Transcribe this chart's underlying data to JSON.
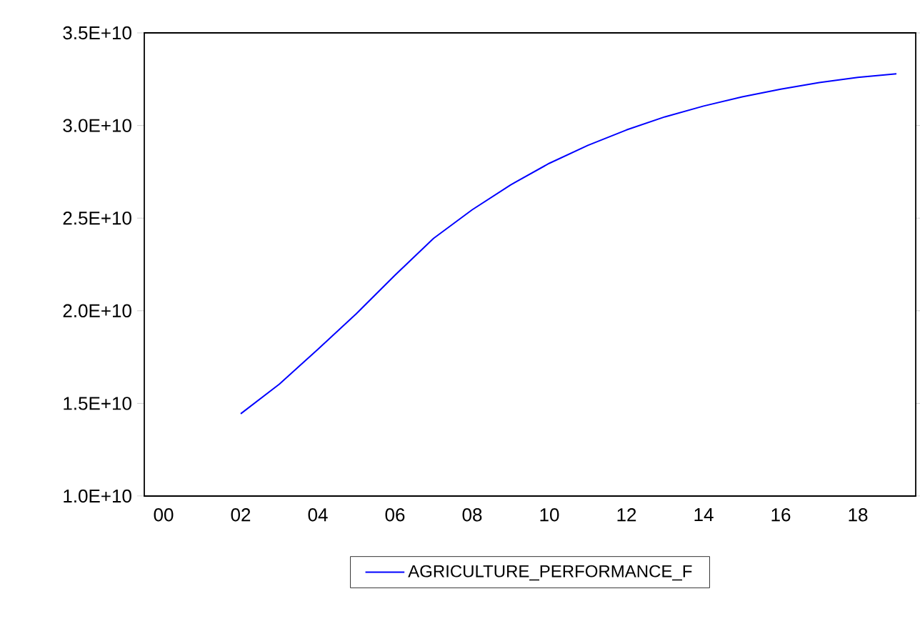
{
  "chart_data": {
    "type": "line",
    "categories": [
      "00",
      null,
      "02",
      null,
      "04",
      null,
      "06",
      null,
      "08",
      null,
      "10",
      null,
      "12",
      null,
      "14",
      null,
      "16",
      null,
      "18",
      null
    ],
    "series": [
      {
        "name": "AGRICULTURE_PERFORMANCE_F",
        "color": "#0000ff",
        "values": [
          null,
          null,
          14440000000,
          16040000000,
          17920000000,
          19850000000,
          21920000000,
          23910000000,
          25450000000,
          26800000000,
          27960000000,
          28930000000,
          29760000000,
          30470000000,
          31050000000,
          31550000000,
          31960000000,
          32320000000,
          32600000000,
          32790000000
        ]
      }
    ],
    "ylim": [
      10000000000,
      35000000000
    ],
    "yticks": [
      {
        "value": 10000000000,
        "label": "1.0E+10"
      },
      {
        "value": 15000000000,
        "label": "1.5E+10"
      },
      {
        "value": 20000000000,
        "label": "2.0E+10"
      },
      {
        "value": 25000000000,
        "label": "2.5E+10"
      },
      {
        "value": 30000000000,
        "label": "3.0E+10"
      },
      {
        "value": 35000000000,
        "label": "3.5E+10"
      }
    ],
    "legend": "bottom",
    "grid": false,
    "marker": "none",
    "line_style": "solid"
  }
}
